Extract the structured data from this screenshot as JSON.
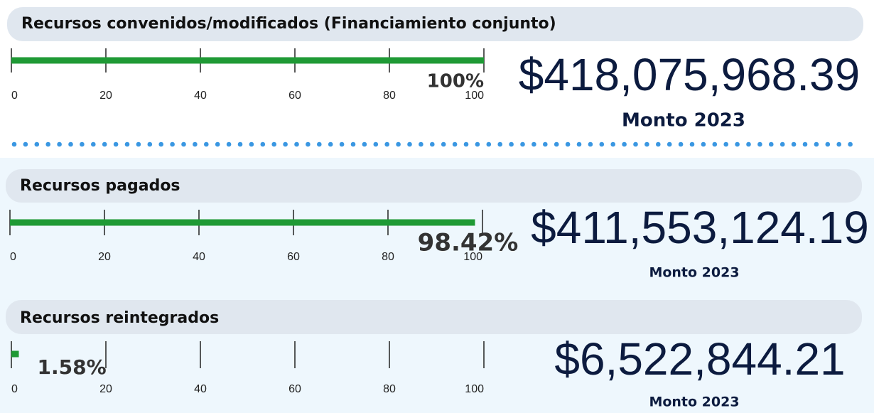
{
  "chart_data": [
    {
      "type": "bar",
      "title": "Recursos convenidos/modificados (Financiamiento conjunto)",
      "values": [
        100
      ],
      "value_labels": [
        "100%"
      ],
      "color": "#1f9a35",
      "xlim": [
        0,
        100
      ],
      "xticks": [
        0,
        20,
        40,
        60,
        80,
        100
      ],
      "amount": "$418,075,968.39",
      "amount_caption": "Monto 2023"
    },
    {
      "type": "bar",
      "title": "Recursos pagados",
      "values": [
        98.42
      ],
      "value_labels": [
        "98.42%"
      ],
      "color": "#1f9a35",
      "xlim": [
        0,
        100
      ],
      "xticks": [
        0,
        20,
        40,
        60,
        80,
        100
      ],
      "amount": "$411,553,124.19",
      "amount_caption": "Monto 2023"
    },
    {
      "type": "bar",
      "title": "Recursos reintegrados",
      "values": [
        1.58
      ],
      "value_labels": [
        "1.58%"
      ],
      "color": "#1f9a35",
      "xlim": [
        0,
        100
      ],
      "xticks": [
        0,
        20,
        40,
        60,
        80,
        100
      ],
      "amount": "$6,522,844.21",
      "amount_caption": "Monto 2023"
    }
  ]
}
